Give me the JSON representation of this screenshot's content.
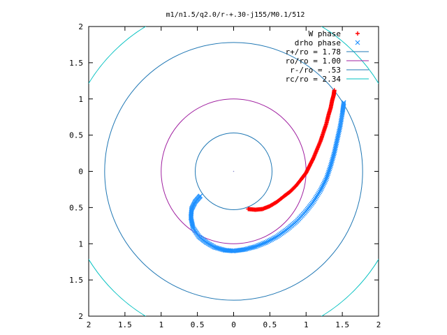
{
  "chart_data": {
    "type": "scatter",
    "title": "m1/n1.5/q2.0/r-+.30-j155/M0.1/512",
    "xlabel": "",
    "ylabel": "",
    "xlim": [
      -2,
      2
    ],
    "ylim": [
      -2,
      2
    ],
    "x_tick_labels": [
      "2",
      "1.5",
      "1",
      "0.5",
      "0",
      "0.5",
      "1",
      "1.5",
      "2"
    ],
    "y_tick_labels": [
      "2",
      "1.5",
      "1",
      "0.5",
      "0",
      "0.5",
      "1",
      "1.5",
      "2"
    ],
    "x_ticks": [
      -2,
      -1.5,
      -1,
      -0.5,
      0,
      0.5,
      1,
      1.5,
      2
    ],
    "y_ticks": [
      2,
      1.5,
      1,
      0.5,
      0,
      -0.5,
      -1,
      -1.5,
      -2
    ],
    "grid": false,
    "legend_position": "top-right",
    "series": [
      {
        "name": "W phase",
        "kind": "points",
        "marker": "+",
        "color": "#ff0000",
        "x": [
          0.2,
          0.3,
          0.4,
          0.5,
          0.6,
          0.7,
          0.78,
          0.86,
          0.94,
          1.0,
          1.05,
          1.1,
          1.15,
          1.2,
          1.24,
          1.28,
          1.31,
          1.34,
          1.36,
          1.38,
          1.39
        ],
        "y": [
          -0.52,
          -0.53,
          -0.52,
          -0.48,
          -0.42,
          -0.34,
          -0.28,
          -0.2,
          -0.1,
          -0.02,
          0.08,
          0.18,
          0.3,
          0.42,
          0.54,
          0.66,
          0.78,
          0.88,
          0.98,
          1.05,
          1.12
        ]
      },
      {
        "name": "drho phase",
        "kind": "points",
        "marker": "x",
        "color": "#1e90ff",
        "x": [
          -0.46,
          -0.53,
          -0.58,
          -0.59,
          -0.56,
          -0.48,
          -0.38,
          -0.26,
          -0.12,
          0.0,
          0.15,
          0.3,
          0.45,
          0.6,
          0.74,
          0.87,
          0.99,
          1.1,
          1.2,
          1.28,
          1.34,
          1.39,
          1.43,
          1.47,
          1.5,
          1.52
        ],
        "y": [
          -0.34,
          -0.42,
          -0.52,
          -0.64,
          -0.78,
          -0.9,
          -0.98,
          -1.05,
          -1.09,
          -1.1,
          -1.08,
          -1.04,
          -0.98,
          -0.9,
          -0.8,
          -0.69,
          -0.56,
          -0.42,
          -0.26,
          -0.1,
          0.08,
          0.26,
          0.44,
          0.62,
          0.8,
          0.95
        ]
      },
      {
        "name": "r+/ro = 1.78",
        "kind": "circle",
        "radius": 1.78,
        "color": "#1f77b4"
      },
      {
        "name": "ro/ro = 1.00",
        "kind": "circle",
        "radius": 1.0,
        "color": "#a020a0"
      },
      {
        "name": "r-/ro = .53",
        "kind": "circle",
        "radius": 0.53,
        "color": "#1f77b4"
      },
      {
        "name": "rc/ro = 2.34",
        "kind": "circle",
        "radius": 2.34,
        "color": "#00c0c0"
      }
    ]
  }
}
